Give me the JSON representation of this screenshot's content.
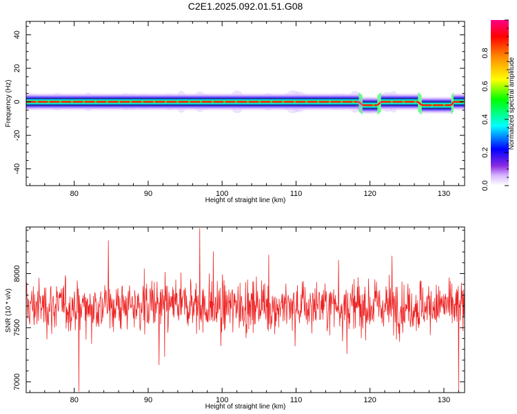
{
  "title": "C2E1.2025.092.01.51.G08",
  "chart_data": [
    {
      "type": "heatmap",
      "xlabel": "Height of straight line (km)",
      "ylabel": "Frequency (Hz)",
      "xlim": [
        73.5,
        132.8
      ],
      "ylim": [
        -50,
        48
      ],
      "x_ticks": [
        80,
        90,
        100,
        110,
        120,
        130
      ],
      "y_ticks": [
        -40,
        -20,
        0,
        20,
        40
      ],
      "colorbar": {
        "label": "Normalized spectral amplitude",
        "range": [
          0,
          1
        ],
        "ticks": [
          0.0,
          0.2,
          0.4,
          0.6,
          0.8
        ]
      },
      "ridge": {
        "description_note": "",
        "segments": [
          {
            "x_start": 73.5,
            "x_end": 118.5,
            "freq": 0
          },
          {
            "x_start": 119.0,
            "x_end": 121.0,
            "freq": -2
          },
          {
            "x_start": 121.5,
            "x_end": 126.5,
            "freq": 0
          },
          {
            "x_start": 127.0,
            "x_end": 131.0,
            "freq": -2
          },
          {
            "x_start": 131.3,
            "x_end": 132.8,
            "freq": 0
          }
        ]
      }
    },
    {
      "type": "line",
      "xlabel": "Height of straight line (km)",
      "ylabel": "SNR (10 * v/v)",
      "xlim": [
        73.5,
        132.8
      ],
      "ylim": [
        6900,
        8430
      ],
      "x_ticks": [
        80,
        90,
        100,
        110,
        120,
        130
      ],
      "y_ticks": [
        7000,
        7500,
        8000
      ],
      "series_color": "#ee2222",
      "mean": 7700,
      "spread": 180,
      "min": 6910,
      "max": 8420,
      "n_points": 1100
    }
  ]
}
